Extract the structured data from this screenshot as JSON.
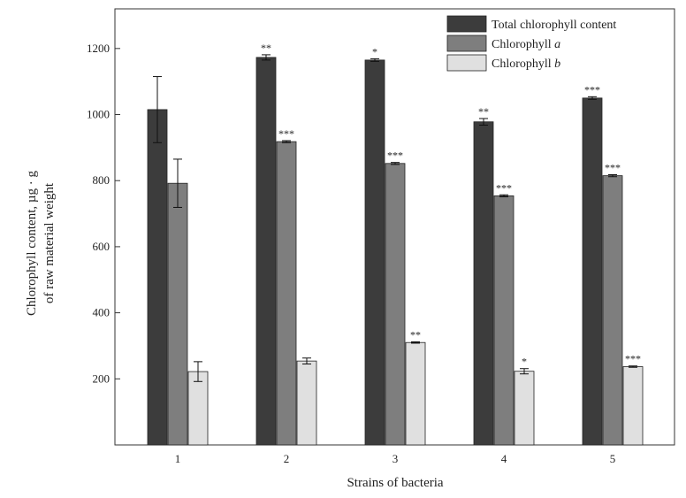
{
  "chart_data": {
    "type": "bar",
    "categories": [
      "1",
      "2",
      "3",
      "4",
      "5"
    ],
    "series": [
      {
        "name": "Total chlorophyll content",
        "name_italic": "",
        "color": "#3c3c3c",
        "values": [
          1015,
          1173,
          1165,
          978,
          1050
        ],
        "errors": [
          100,
          8,
          4,
          10,
          4
        ],
        "significance": [
          "",
          "**",
          "*",
          "**",
          "***"
        ]
      },
      {
        "name": "Chlorophyll ",
        "name_italic": "a",
        "color": "#7e7e7e",
        "values": [
          792,
          918,
          852,
          754,
          815
        ],
        "errors": [
          73,
          3,
          3,
          3,
          3
        ],
        "significance": [
          "",
          "***",
          "***",
          "***",
          "***"
        ]
      },
      {
        "name": "Chlorophyll ",
        "name_italic": "b",
        "color": "#e0e0e0",
        "values": [
          222,
          254,
          310,
          223,
          237
        ],
        "errors": [
          30,
          9,
          2,
          8,
          2
        ],
        "significance": [
          "",
          "",
          "**",
          "*",
          "***"
        ]
      }
    ],
    "xlabel": "Strains of bacteria",
    "ylabel_line1": "Chlorophyll content, µg · g",
    "ylabel_line2": "of raw material weight",
    "yticks": [
      200,
      400,
      600,
      800,
      1000,
      1200
    ],
    "ylim": [
      0,
      1320
    ],
    "legend_position": "top-right",
    "grid": false
  }
}
